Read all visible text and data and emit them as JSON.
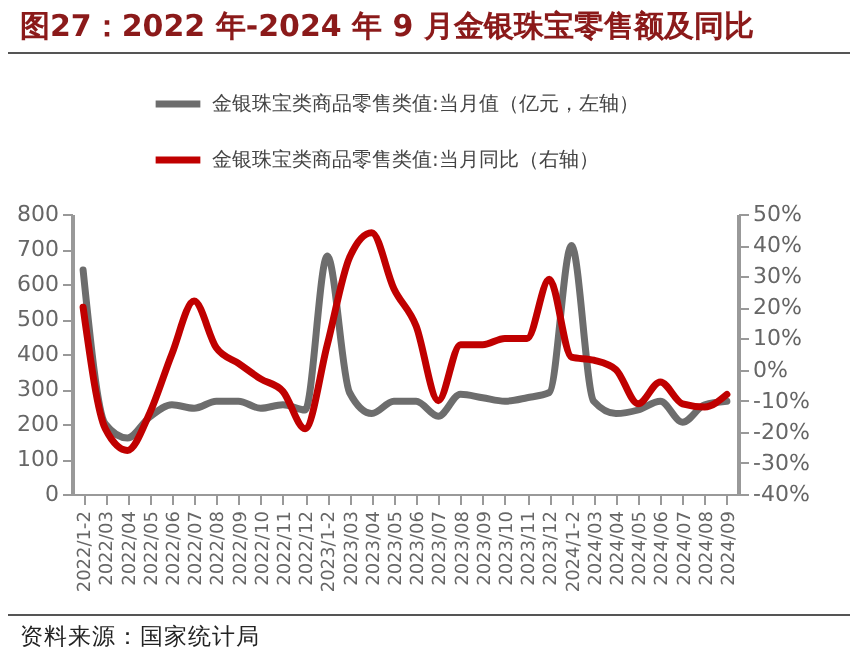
{
  "chart_data": {
    "type": "line",
    "title": "图27：2022 年-2024 年 9 月金银珠宝零售额及同比",
    "categories": [
      "2022/1-2",
      "2022/03",
      "2022/04",
      "2022/05",
      "2022/06",
      "2022/07",
      "2022/08",
      "2022/09",
      "2022/10",
      "2022/11",
      "2022/12",
      "2023/1-2",
      "2023/03",
      "2023/04",
      "2023/05",
      "2023/06",
      "2023/07",
      "2023/08",
      "2023/09",
      "2023/10",
      "2023/11",
      "2023/12",
      "2024/1-2",
      "2024/03",
      "2024/04",
      "2024/05",
      "2024/06",
      "2024/07",
      "2024/08",
      "2024/09"
    ],
    "series": [
      {
        "name": "金银珠宝类商品零售类值:当月值（亿元，左轴）",
        "color": "#6d6d6d",
        "values": [
          640,
          200,
          160,
          220,
          255,
          245,
          265,
          265,
          245,
          255,
          240,
          680,
          290,
          230,
          265,
          265,
          222,
          285,
          275,
          265,
          275,
          290,
          710,
          265,
          230,
          240,
          265,
          205,
          255,
          265
        ]
      },
      {
        "name": "金银珠宝类商品零售类值:当月同比（右轴）",
        "color": "#c00000",
        "axis": "y2",
        "values": [
          20,
          -19,
          -26,
          -14,
          5,
          22,
          7,
          2,
          -3,
          -7,
          -19,
          8,
          36,
          44,
          26,
          14,
          -10,
          8,
          8,
          10,
          10,
          29,
          4,
          3,
          0,
          -11,
          -4,
          -11,
          -12,
          -8
        ]
      }
    ],
    "ylim": [
      0,
      800
    ],
    "yticks": [
      0,
      100,
      200,
      300,
      400,
      500,
      600,
      700,
      800
    ],
    "y2lim": [
      -40,
      50
    ],
    "y2ticks": [
      {
        "value": -40,
        "label": "-40%"
      },
      {
        "value": -30,
        "label": "-30%"
      },
      {
        "value": -20,
        "label": "-20%"
      },
      {
        "value": -10,
        "label": "-10%"
      },
      {
        "value": 0,
        "label": "0%"
      },
      {
        "value": 10,
        "label": "10%"
      },
      {
        "value": 20,
        "label": "20%"
      },
      {
        "value": 30,
        "label": "30%"
      },
      {
        "value": 40,
        "label": "40%"
      },
      {
        "value": 50,
        "label": "50%"
      }
    ],
    "legend": "top",
    "grid": false,
    "annotations": [
      "资料来源：国家统计局"
    ]
  }
}
